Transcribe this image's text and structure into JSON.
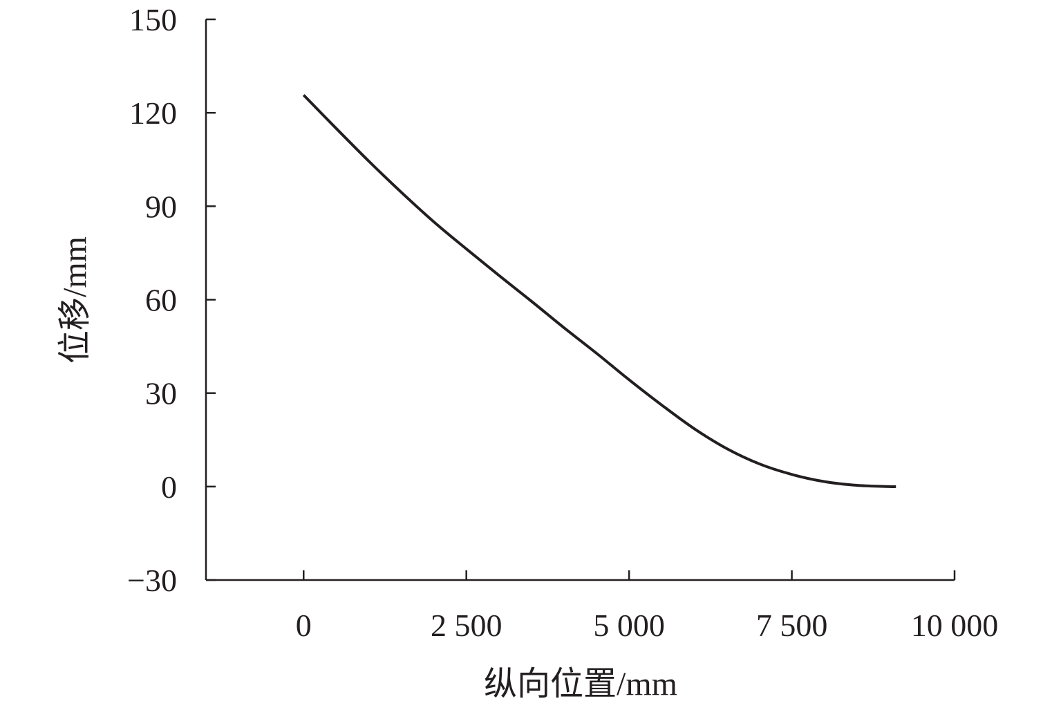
{
  "chart_data": {
    "type": "line",
    "title": "",
    "xlabel": "纵向位置/mm",
    "ylabel": "位移/mm",
    "xlim": [
      -1500,
      10000
    ],
    "ylim": [
      -30,
      150
    ],
    "x_ticks": [
      0,
      2500,
      5000,
      7500,
      10000
    ],
    "x_tick_labels": [
      "0",
      "2 500",
      "5 000",
      "7 500",
      "10 000"
    ],
    "y_ticks": [
      -30,
      0,
      30,
      60,
      90,
      120,
      150
    ],
    "y_tick_labels": [
      "−30",
      "0",
      "30",
      "60",
      "90",
      "120",
      "150"
    ],
    "grid": false,
    "legend": "none",
    "series": [
      {
        "color": "#231f20",
        "x": [
          0,
          500,
          1000,
          1500,
          2000,
          2500,
          3000,
          3500,
          4000,
          4500,
          5000,
          5500,
          6000,
          6500,
          7000,
          7500,
          8000,
          8500,
          9000,
          9100
        ],
        "y": [
          125.7,
          115.0,
          104.5,
          94.5,
          85.0,
          76.3,
          67.8,
          59.5,
          51.0,
          42.8,
          34.3,
          26.2,
          18.6,
          12.2,
          7.3,
          3.9,
          1.6,
          0.4,
          0.0,
          0.0
        ]
      }
    ]
  }
}
